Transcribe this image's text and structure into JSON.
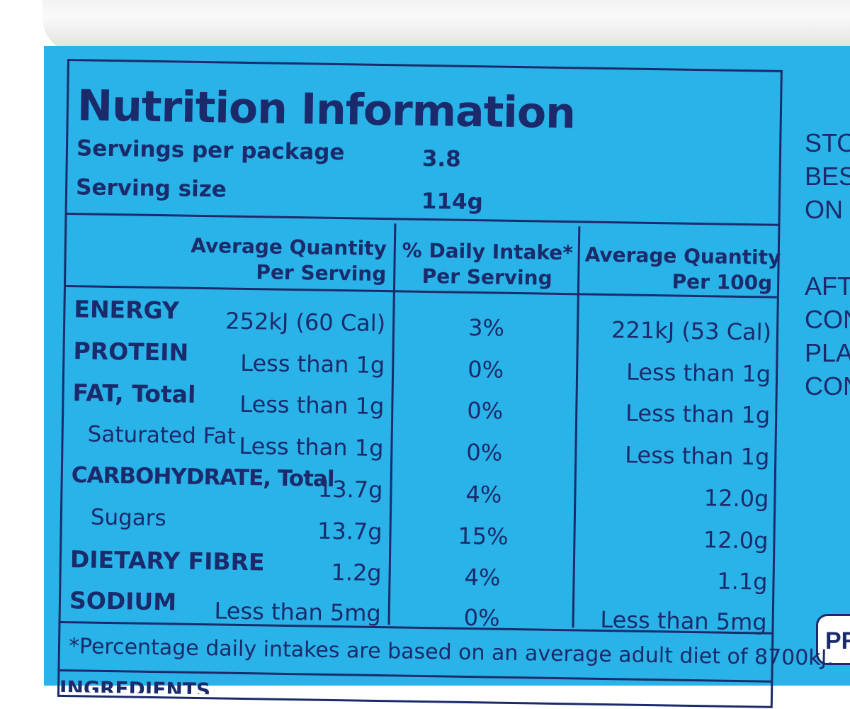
{
  "panel": {
    "title": "Nutrition Information",
    "servings_per_package_label": "Servings per package",
    "servings_per_package_value": "3.8",
    "serving_size_label": "Serving size",
    "serving_size_value": "114g"
  },
  "table": {
    "headers": {
      "per_serving_line1": "Average Quantity",
      "per_serving_line2": "Per Serving",
      "daily_intake_line1": "% Daily Intake*",
      "daily_intake_line2": "Per Serving",
      "per_100g_line1": "Average Quantity",
      "per_100g_line2": "Per 100g"
    },
    "rows": [
      {
        "label": "ENERGY",
        "per_serving": "252kJ (60 Cal)",
        "daily_intake": "3%",
        "per_100g": "221kJ (53 Cal)"
      },
      {
        "label": "PROTEIN",
        "per_serving": "Less than 1g",
        "daily_intake": "0%",
        "per_100g": "Less than 1g"
      },
      {
        "label": "FAT, Total",
        "per_serving": "Less than 1g",
        "daily_intake": "0%",
        "per_100g": "Less than 1g"
      },
      {
        "label": "Saturated Fat",
        "per_serving": "Less than 1g",
        "daily_intake": "0%",
        "per_100g": "Less than 1g"
      },
      {
        "label": "CARBOHYDRATE, Total",
        "per_serving": "13.7g",
        "daily_intake": "4%",
        "per_100g": "12.0g"
      },
      {
        "label": "Sugars",
        "per_serving": "13.7g",
        "daily_intake": "15%",
        "per_100g": "12.0g"
      },
      {
        "label": "DIETARY FIBRE",
        "per_serving": "1.2g",
        "daily_intake": "4%",
        "per_100g": "1.1g"
      },
      {
        "label": "SODIUM",
        "per_serving": "Less than 5mg",
        "daily_intake": "0%",
        "per_100g": "Less than 5mg"
      }
    ],
    "footnote": "*Percentage daily intakes are based on an average adult diet of 8700kJ."
  },
  "ingredients_heading": "INGREDIENTS",
  "side_text": {
    "line1": "STO",
    "line2": "BES",
    "line3": "ON",
    "line4": "AFT",
    "line5": "CON",
    "line6": "PLA",
    "line7": "CON"
  },
  "badge_text": "PR",
  "colors": {
    "label_blue": "#29b3e8",
    "ink_navy": "#1b2a6b"
  }
}
